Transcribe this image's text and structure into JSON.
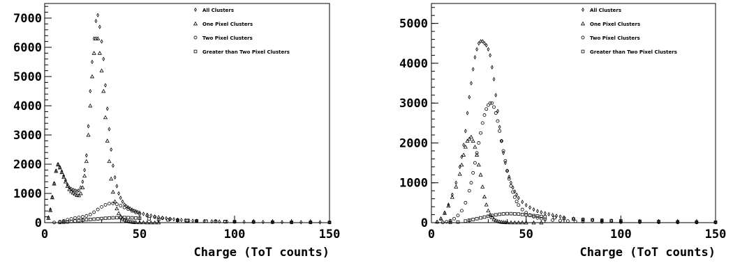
{
  "chart_data": [
    {
      "type": "scatter",
      "title": "",
      "xlabel": "Charge (ToT counts)",
      "ylabel": "",
      "xlim": [
        0,
        150
      ],
      "ylim": [
        0,
        7500
      ],
      "xticks": [
        "0",
        "50",
        "100",
        "150"
      ],
      "yticks": [
        "0",
        "1000",
        "2000",
        "3000",
        "4000",
        "5000",
        "6000",
        "7000"
      ],
      "ytick_values": [
        0,
        1000,
        2000,
        3000,
        4000,
        5000,
        6000,
        7000
      ],
      "xtick_values": [
        0,
        50,
        100,
        150
      ],
      "grid": false,
      "legend_position": "top-right",
      "series": [
        {
          "name": "All Clusters",
          "marker": "diamond",
          "x": [
            2,
            3,
            4,
            5,
            6,
            7,
            8,
            9,
            10,
            11,
            12,
            13,
            14,
            15,
            16,
            17,
            18,
            19,
            20,
            21,
            22,
            23,
            24,
            25,
            26,
            27,
            28,
            29,
            30,
            31,
            32,
            33,
            34,
            35,
            36,
            37,
            38,
            39,
            40,
            41,
            42,
            43,
            44,
            45,
            46,
            47,
            48,
            49,
            50,
            52,
            54,
            56,
            58,
            60,
            62,
            64,
            66,
            68,
            70,
            72,
            74,
            76,
            78,
            80,
            84,
            88,
            92,
            96,
            100,
            105,
            110,
            115,
            120,
            125,
            130,
            135,
            140,
            145,
            150
          ],
          "y": [
            180,
            450,
            880,
            1350,
            1780,
            2000,
            1900,
            1750,
            1600,
            1450,
            1300,
            1200,
            1150,
            1120,
            1100,
            1080,
            1100,
            1200,
            1400,
            1800,
            2300,
            3300,
            4500,
            5500,
            6300,
            6900,
            7100,
            6700,
            6200,
            5600,
            4700,
            3900,
            3200,
            2500,
            1950,
            1550,
            1250,
            1000,
            850,
            720,
            620,
            560,
            520,
            480,
            440,
            410,
            390,
            360,
            340,
            300,
            270,
            240,
            210,
            185,
            165,
            150,
            130,
            115,
            100,
            90,
            80,
            72,
            65,
            58,
            50,
            44,
            38,
            33,
            30,
            27,
            24,
            22,
            20,
            18,
            17,
            16,
            15,
            14,
            13
          ]
        },
        {
          "name": "One Pixel Clusters",
          "marker": "triangle",
          "x": [
            2,
            3,
            4,
            5,
            6,
            7,
            8,
            9,
            10,
            11,
            12,
            13,
            14,
            15,
            16,
            17,
            18,
            19,
            20,
            21,
            22,
            23,
            24,
            25,
            26,
            27,
            28,
            29,
            30,
            31,
            32,
            33,
            34,
            35,
            36,
            37,
            38,
            39,
            40,
            41,
            42,
            43,
            44,
            45,
            46,
            47,
            48,
            50,
            52,
            54,
            56,
            58,
            60
          ],
          "y": [
            150,
            420,
            860,
            1330,
            1760,
            1980,
            1880,
            1720,
            1560,
            1400,
            1250,
            1140,
            1070,
            1020,
            980,
            940,
            930,
            1000,
            1200,
            1600,
            2100,
            3000,
            4000,
            5000,
            5800,
            6300,
            6300,
            5800,
            5200,
            4500,
            3600,
            2800,
            2100,
            1500,
            1050,
            720,
            480,
            320,
            210,
            140,
            95,
            65,
            45,
            32,
            22,
            15,
            10,
            6,
            4,
            3,
            2,
            1,
            1
          ]
        },
        {
          "name": "Two Pixel Clusters",
          "marker": "circle",
          "x": [
            5,
            8,
            10,
            12,
            14,
            16,
            18,
            20,
            22,
            24,
            26,
            28,
            30,
            32,
            34,
            36,
            38,
            40,
            42,
            44,
            46,
            48,
            50,
            54,
            58,
            62,
            66,
            70,
            75,
            80,
            85,
            90,
            95,
            100,
            110,
            120,
            130,
            140,
            150
          ],
          "y": [
            5,
            30,
            60,
            100,
            130,
            160,
            180,
            200,
            230,
            280,
            360,
            450,
            540,
            610,
            650,
            660,
            630,
            580,
            520,
            460,
            400,
            350,
            300,
            240,
            190,
            150,
            120,
            95,
            75,
            60,
            48,
            38,
            30,
            25,
            18,
            12,
            9,
            7,
            5
          ]
        },
        {
          "name": "Greater than Two  Pixel Clusters",
          "marker": "square",
          "x": [
            8,
            10,
            12,
            14,
            16,
            18,
            20,
            22,
            24,
            26,
            28,
            30,
            32,
            34,
            36,
            38,
            40,
            42,
            44,
            46,
            48,
            50,
            55,
            60,
            65,
            70,
            75,
            80,
            85,
            90,
            95,
            100,
            110,
            120,
            130,
            140,
            150
          ],
          "y": [
            5,
            15,
            25,
            40,
            55,
            70,
            85,
            100,
            110,
            120,
            130,
            140,
            150,
            160,
            165,
            170,
            175,
            175,
            170,
            165,
            160,
            150,
            130,
            110,
            95,
            80,
            68,
            58,
            50,
            44,
            38,
            33,
            25,
            19,
            14,
            11,
            8
          ]
        }
      ]
    },
    {
      "type": "scatter",
      "title": "",
      "xlabel": "Charge (ToT counts)",
      "ylabel": "",
      "xlim": [
        0,
        150
      ],
      "ylim": [
        0,
        5500
      ],
      "xticks": [
        "0",
        "50",
        "100",
        "150"
      ],
      "yticks": [
        "0",
        "1000",
        "2000",
        "3000",
        "4000",
        "5000"
      ],
      "ytick_values": [
        0,
        1000,
        2000,
        3000,
        4000,
        5000
      ],
      "xtick_values": [
        0,
        50,
        100,
        150
      ],
      "grid": false,
      "legend_position": "top-right",
      "series": [
        {
          "name": "All Clusters",
          "marker": "diamond",
          "x": [
            3,
            5,
            7,
            9,
            11,
            13,
            15,
            16,
            17,
            18,
            19,
            20,
            21,
            22,
            23,
            24,
            25,
            26,
            27,
            28,
            29,
            30,
            31,
            32,
            33,
            34,
            35,
            36,
            37,
            38,
            39,
            40,
            41,
            42,
            43,
            44,
            45,
            46,
            48,
            50,
            52,
            54,
            56,
            58,
            60,
            62,
            64,
            66,
            68,
            70,
            75,
            80,
            85,
            90,
            95,
            100,
            110,
            120,
            130,
            140,
            150
          ],
          "y": [
            20,
            100,
            250,
            450,
            700,
            1000,
            1400,
            1650,
            1950,
            2300,
            2750,
            3150,
            3500,
            3850,
            4150,
            4350,
            4500,
            4550,
            4550,
            4500,
            4450,
            4350,
            4200,
            3900,
            3600,
            3200,
            2800,
            2400,
            2050,
            1750,
            1500,
            1300,
            1150,
            1000,
            880,
            780,
            700,
            620,
            520,
            440,
            380,
            330,
            290,
            260,
            235,
            210,
            190,
            170,
            150,
            130,
            100,
            80,
            65,
            55,
            45,
            38,
            28,
            20,
            15,
            12,
            10
          ]
        },
        {
          "name": "One Pixel Clusters",
          "marker": "triangle",
          "x": [
            3,
            5,
            7,
            9,
            11,
            13,
            15,
            16,
            17,
            18,
            19,
            20,
            21,
            22,
            23,
            24,
            25,
            26,
            27,
            28,
            29,
            30,
            31,
            32,
            33,
            34,
            35,
            36,
            37,
            38,
            39,
            40,
            42,
            44,
            46,
            48,
            50,
            54,
            58
          ],
          "y": [
            20,
            100,
            240,
            420,
            640,
            900,
            1220,
            1450,
            1700,
            1900,
            2050,
            2100,
            2150,
            2050,
            1900,
            1700,
            1450,
            1200,
            900,
            650,
            450,
            300,
            200,
            130,
            85,
            55,
            35,
            22,
            14,
            9,
            6,
            4,
            2,
            1,
            1,
            1,
            0,
            0,
            0
          ]
        },
        {
          "name": "Two Pixel Clusters",
          "marker": "circle",
          "x": [
            6,
            8,
            10,
            12,
            14,
            16,
            18,
            20,
            21,
            22,
            23,
            24,
            25,
            26,
            27,
            28,
            29,
            30,
            31,
            32,
            33,
            34,
            35,
            36,
            37,
            38,
            39,
            40,
            41,
            42,
            43,
            44,
            45,
            46,
            48,
            50,
            52,
            54,
            56,
            58,
            60,
            64,
            68,
            72,
            76,
            80,
            90,
            100,
            110,
            120,
            130,
            140,
            150
          ],
          "y": [
            5,
            20,
            50,
            100,
            180,
            300,
            500,
            800,
            1000,
            1250,
            1500,
            1750,
            2000,
            2250,
            2500,
            2700,
            2850,
            2950,
            3000,
            3000,
            2900,
            2750,
            2550,
            2300,
            2050,
            1800,
            1550,
            1300,
            1100,
            920,
            770,
            640,
            530,
            440,
            330,
            250,
            190,
            150,
            120,
            100,
            85,
            65,
            50,
            40,
            32,
            26,
            18,
            13,
            10,
            8,
            6,
            5,
            4
          ]
        },
        {
          "name": "Greater than Two  Pixel Clusters",
          "marker": "square",
          "x": [
            10,
            14,
            18,
            20,
            22,
            24,
            26,
            28,
            30,
            32,
            34,
            36,
            38,
            40,
            42,
            44,
            46,
            48,
            50,
            52,
            54,
            56,
            58,
            60,
            65,
            70,
            75,
            80,
            85,
            90,
            95,
            100,
            110,
            120,
            130,
            140,
            150
          ],
          "y": [
            5,
            15,
            40,
            60,
            80,
            100,
            120,
            140,
            160,
            180,
            195,
            210,
            220,
            225,
            225,
            220,
            215,
            205,
            195,
            185,
            175,
            165,
            155,
            145,
            125,
            105,
            90,
            78,
            68,
            58,
            50,
            44,
            34,
            26,
            20,
            15,
            12
          ]
        }
      ]
    }
  ]
}
